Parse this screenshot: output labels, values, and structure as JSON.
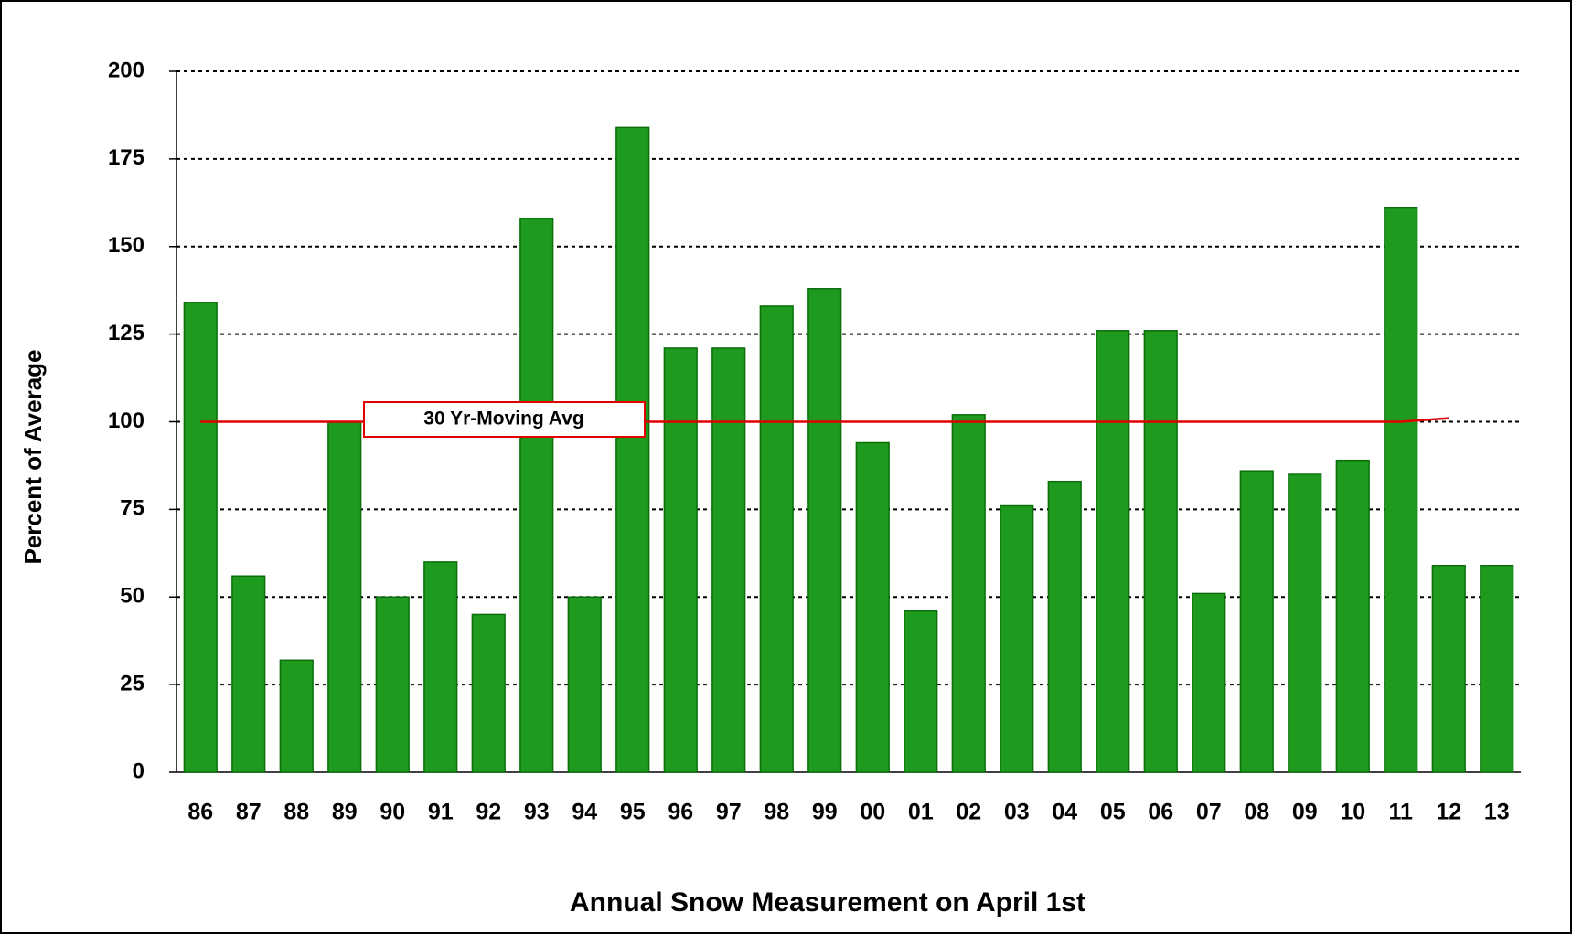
{
  "chart_data": {
    "type": "bar",
    "x_label": "Annual Snow Measurement on April 1st",
    "y_label": "Percent of Average",
    "categories": [
      "86",
      "87",
      "88",
      "89",
      "90",
      "91",
      "92",
      "93",
      "94",
      "95",
      "96",
      "97",
      "98",
      "99",
      "00",
      "01",
      "02",
      "03",
      "04",
      "05",
      "06",
      "07",
      "08",
      "09",
      "10",
      "11",
      "12",
      "13"
    ],
    "series": [
      {
        "name": "Percent of Average",
        "type": "bar",
        "color": "#1e9a1e",
        "values": [
          134,
          56,
          32,
          100,
          50,
          60,
          45,
          158,
          50,
          184,
          121,
          121,
          133,
          138,
          94,
          46,
          102,
          76,
          83,
          126,
          126,
          51,
          86,
          85,
          89,
          161,
          59,
          59
        ]
      },
      {
        "name": "30 Yr-Moving Avg",
        "type": "line",
        "color": "#e00000",
        "values": [
          100,
          100,
          100,
          100,
          100,
          100,
          100,
          100,
          100,
          100,
          100,
          100,
          100,
          100,
          100,
          100,
          100,
          100,
          100,
          100,
          100,
          100,
          100,
          100,
          100,
          100,
          101,
          null
        ]
      }
    ],
    "ylim": [
      0,
      200
    ],
    "yticks": [
      0,
      25,
      50,
      75,
      100,
      125,
      150,
      175,
      200
    ],
    "grid": true
  }
}
